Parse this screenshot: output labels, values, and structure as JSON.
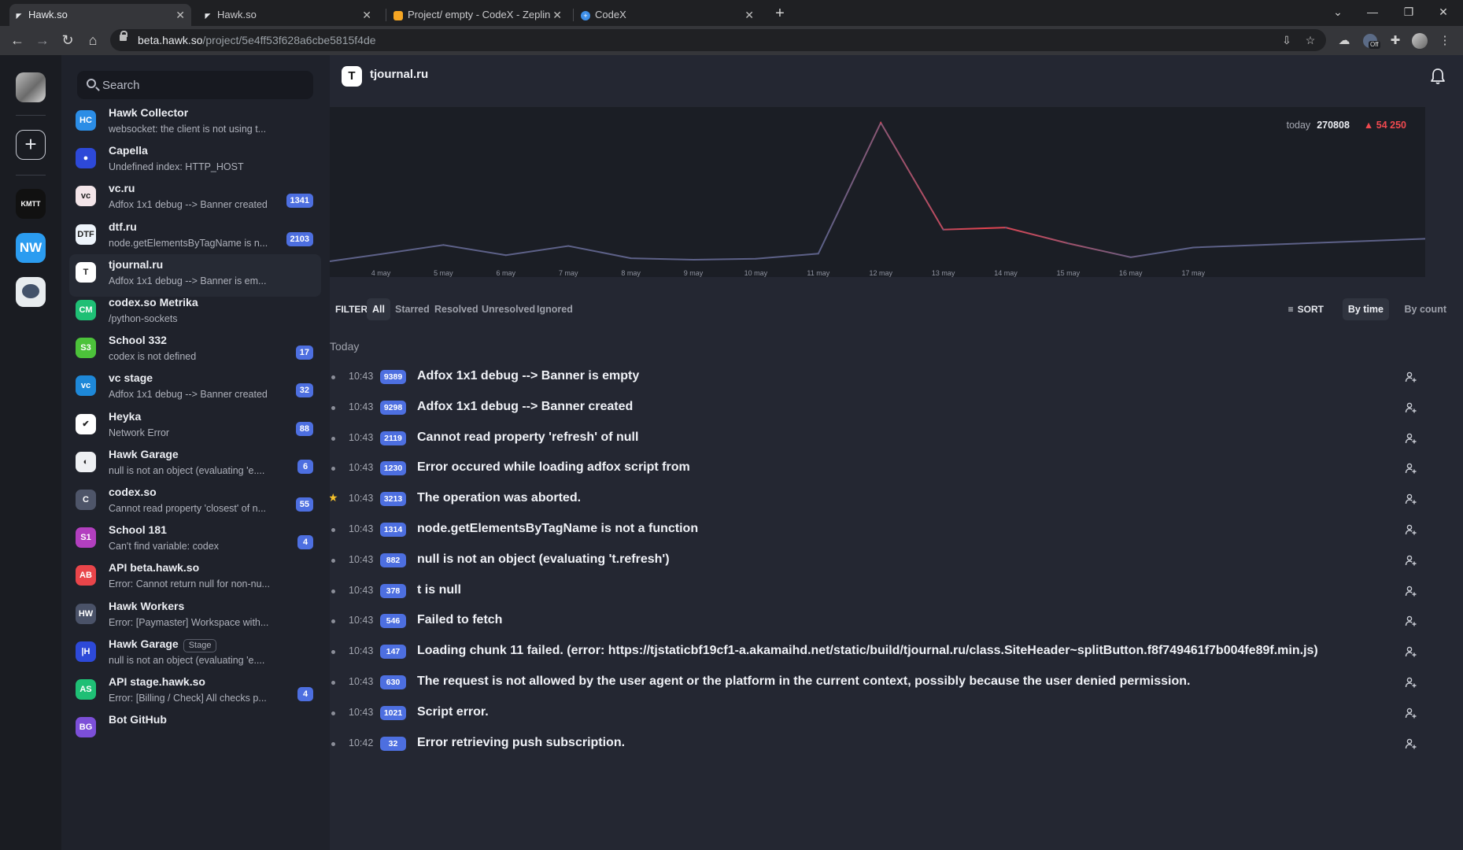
{
  "browser": {
    "tabs": [
      {
        "title": "Hawk.so",
        "active": true
      },
      {
        "title": "Hawk.so",
        "active": false
      },
      {
        "title": "Project/ empty - CodeX - Zeplin",
        "active": false
      },
      {
        "title": "CodeX",
        "active": false
      }
    ],
    "url_host": "beta.hawk.so",
    "url_path": "/project/5e4ff53f628a6cbe5815f4de",
    "extension_badge": "Off"
  },
  "workspaces": [
    {
      "label": "KMTT",
      "bg": "#111111",
      "fg": "#ffffff"
    },
    {
      "label": "NW",
      "bg": "#2b9cf0",
      "fg": "#ffffff"
    },
    {
      "label": "",
      "bg": "#e8ecef",
      "fg": "#333333"
    }
  ],
  "search": {
    "placeholder": "Search"
  },
  "projects": [
    {
      "name": "Hawk Collector",
      "message": "websocket: the client is not using t...",
      "badge": "HC",
      "color": "#2b8de6",
      "count": "",
      "stage": ""
    },
    {
      "name": "Capella",
      "message": "Undefined index: HTTP_HOST",
      "badge": "●",
      "color": "#2d49d8",
      "count": "",
      "stage": ""
    },
    {
      "name": "vc.ru",
      "message": "Adfox 1x1 debug --> Banner created",
      "badge": "vc",
      "color": "#f3e5e9",
      "count": "1341",
      "stage": ""
    },
    {
      "name": "dtf.ru",
      "message": "node.getElementsByTagName is n...",
      "badge": "DTF",
      "color": "#eef4fb",
      "count": "2103",
      "stage": ""
    },
    {
      "name": "tjournal.ru",
      "message": "Adfox 1x1 debug --> Banner is em...",
      "badge": "T",
      "color": "#ffffff",
      "count": "",
      "stage": "",
      "active": true
    },
    {
      "name": "codex.so Metrika",
      "message": "/python-sockets",
      "badge": "CM",
      "color": "#1fbf75",
      "count": "",
      "stage": ""
    },
    {
      "name": "School 332",
      "message": "codex is not defined",
      "badge": "S3",
      "color": "#4cc23a",
      "count": "17",
      "stage": ""
    },
    {
      "name": "vc stage",
      "message": "Adfox 1x1 debug --> Banner created",
      "badge": "vc",
      "color": "#1e88d8",
      "count": "32",
      "stage": ""
    },
    {
      "name": "Heyka",
      "message": "Network Error",
      "badge": "✔",
      "color": "#ffffff",
      "count": "88",
      "stage": ""
    },
    {
      "name": "Hawk Garage",
      "message": "null is not an object (evaluating 'e....",
      "badge": "◐",
      "color": "#eef0f3",
      "count": "6",
      "stage": ""
    },
    {
      "name": "codex.so",
      "message": "Cannot read property 'closest' of n...",
      "badge": "C",
      "color": "#4e5569",
      "count": "55",
      "stage": ""
    },
    {
      "name": "School 181",
      "message": "Can't find variable: codex",
      "badge": "S1",
      "color": "#b23fbf",
      "count": "4",
      "stage": ""
    },
    {
      "name": "API beta.hawk.so",
      "message": "Error: Cannot return null for non-nu...",
      "badge": "AB",
      "color": "#e9454a",
      "count": "",
      "stage": ""
    },
    {
      "name": "Hawk Workers",
      "message": "Error: [Paymaster] Workspace with...",
      "badge": "HW",
      "color": "#4a5268",
      "count": "",
      "stage": ""
    },
    {
      "name": "Hawk Garage",
      "message": "null is not an object (evaluating 'e....",
      "badge": "|H",
      "color": "#2d49d8",
      "count": "",
      "stage": "Stage"
    },
    {
      "name": "API stage.hawk.so",
      "message": "Error: [Billing / Check] All checks p...",
      "badge": "AS",
      "color": "#1fbf75",
      "count": "4",
      "stage": ""
    },
    {
      "name": "Bot GitHub",
      "message": "",
      "badge": "BG",
      "color": "#7c4fd8",
      "count": "",
      "stage": ""
    }
  ],
  "project": {
    "title": "tjournal.ru",
    "logo": "T"
  },
  "stats": {
    "today_label": "today",
    "today_value": "270808",
    "delta": "54 250"
  },
  "chart_data": {
    "type": "line",
    "categories": [
      "4 may",
      "5 may",
      "6 may",
      "7 may",
      "8 may",
      "9 may",
      "10 may",
      "11 may",
      "12 may",
      "13 may",
      "14 may",
      "15 may",
      "16 may",
      "17 may"
    ],
    "values": [
      14000,
      32000,
      12000,
      30000,
      6000,
      3000,
      5000,
      15000,
      270808,
      62000,
      66000,
      35000,
      8000,
      27000
    ],
    "start_value": 0,
    "end_value": 44000,
    "highlight_color": "#e4434f",
    "line_color": "#5d6188"
  },
  "filter": {
    "label": "FILTER",
    "options": [
      "All",
      "Starred",
      "Resolved",
      "Unresolved",
      "Ignored"
    ],
    "active": "All"
  },
  "sort": {
    "label": "SORT",
    "options": [
      "By time",
      "By count"
    ],
    "active": "By time"
  },
  "day_label": "Today",
  "events": [
    {
      "time": "10:43",
      "count": "9389",
      "title": "Adfox 1x1 debug --> Banner is empty",
      "starred": false
    },
    {
      "time": "10:43",
      "count": "9298",
      "title": "Adfox 1x1 debug --> Banner created",
      "starred": false
    },
    {
      "time": "10:43",
      "count": "2119",
      "title": "Cannot read property 'refresh' of null",
      "starred": false
    },
    {
      "time": "10:43",
      "count": "1230",
      "title": "Error occured while loading adfox script from",
      "starred": false
    },
    {
      "time": "10:43",
      "count": "3213",
      "title": "The operation was aborted.",
      "starred": true
    },
    {
      "time": "10:43",
      "count": "1314",
      "title": "node.getElementsByTagName is not a function",
      "starred": false
    },
    {
      "time": "10:43",
      "count": "882",
      "title": "null is not an object (evaluating 't.refresh')",
      "starred": false
    },
    {
      "time": "10:43",
      "count": "378",
      "title": "t is null",
      "starred": false
    },
    {
      "time": "10:43",
      "count": "546",
      "title": "Failed to fetch",
      "starred": false
    },
    {
      "time": "10:43",
      "count": "147",
      "title": "Loading chunk 11 failed. (error: https://tjstaticbf19cf1-a.akamaihd.net/static/build/tjournal.ru/class.SiteHeader~splitButton.f8f749461f7b004fe89f.min.js)",
      "starred": false
    },
    {
      "time": "10:43",
      "count": "630",
      "title": "The request is not allowed by the user agent or the platform in the current context, possibly because the user denied permission.",
      "starred": false
    },
    {
      "time": "10:43",
      "count": "1021",
      "title": "Script error.",
      "starred": false
    },
    {
      "time": "10:42",
      "count": "32",
      "title": "Error retrieving push subscription.",
      "starred": false
    }
  ]
}
